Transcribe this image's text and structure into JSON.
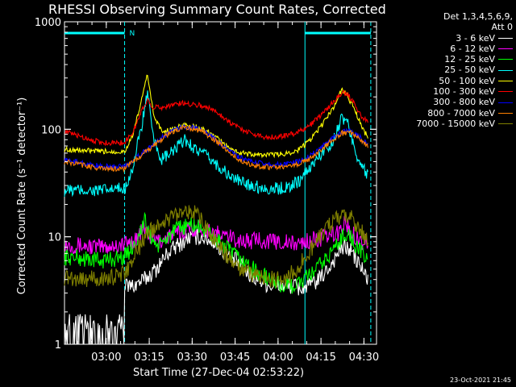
{
  "chart_data": {
    "type": "line",
    "title": "RHESSI Observing Summary Count Rates, Corrected",
    "xlabel": "Start Time (27-Dec-04 02:53:22)",
    "ylabel": "Corrected Count Rate (s⁻¹ detector⁻¹)",
    "yscale": "log",
    "ylim": [
      1,
      1000
    ],
    "xlim_minutes": [
      -8,
      101
    ],
    "yticks": [
      "1",
      "10",
      "100",
      "1000"
    ],
    "xticks": [
      {
        "t": 6.6,
        "label": "03:00"
      },
      {
        "t": 21.6,
        "label": "03:15"
      },
      {
        "t": 36.6,
        "label": "03:30"
      },
      {
        "t": 51.6,
        "label": "03:45"
      },
      {
        "t": 66.6,
        "label": "04:00"
      },
      {
        "t": 81.6,
        "label": "04:15"
      },
      {
        "t": 96.6,
        "label": "04:30"
      }
    ],
    "legend_header": [
      "Det 1,3,4,5,6,9,",
      "Att 0"
    ],
    "legend_position": "top-right",
    "night_intervals": [
      [
        -8,
        13
      ],
      [
        76,
        99
      ]
    ],
    "flag_label": "N",
    "series": [
      {
        "name": "3 - 6 keV",
        "color": "#ffffff",
        "t": [
          -8,
          5,
          12.5,
          13,
          16,
          20,
          24,
          28,
          32,
          36,
          40,
          44,
          48,
          52,
          56,
          60,
          64,
          68,
          72,
          74,
          77,
          81,
          84,
          86,
          88,
          90,
          92,
          94,
          96,
          98
        ],
        "v": [
          1.6,
          1.6,
          1.6,
          3.5,
          3.5,
          4,
          5,
          7,
          8.5,
          10,
          10,
          9,
          7,
          6,
          4.5,
          4,
          3.5,
          3.5,
          3.5,
          3.3,
          3.5,
          4,
          5,
          6,
          7.5,
          8,
          7.5,
          6,
          5,
          4
        ]
      },
      {
        "name": "6 - 12 keV",
        "color": "#ff00ff",
        "t": [
          -8,
          5,
          13,
          17,
          20,
          22,
          25,
          28,
          32,
          36,
          40,
          44,
          48,
          52,
          56,
          60,
          64,
          68,
          72,
          76,
          80,
          84,
          88,
          90,
          92,
          94,
          96,
          98
        ],
        "v": [
          8.5,
          8,
          8.5,
          9.5,
          12,
          10,
          9,
          10,
          11,
          12,
          12,
          11,
          10,
          9.5,
          9,
          9.5,
          9,
          9,
          8.5,
          9,
          9.5,
          10,
          11,
          14,
          11,
          10,
          9,
          9
        ]
      },
      {
        "name": "12 - 25 keV",
        "color": "#00ff00",
        "t": [
          -8,
          5,
          13,
          17,
          20,
          22,
          25,
          28,
          32,
          36,
          40,
          44,
          48,
          52,
          56,
          60,
          64,
          68,
          72,
          76,
          80,
          84,
          88,
          90,
          92,
          94,
          96,
          98
        ],
        "v": [
          6.5,
          6,
          6.5,
          9,
          14,
          10,
          8,
          10,
          12,
          13,
          12,
          10,
          8,
          6.5,
          5.5,
          4.5,
          4,
          3.5,
          3.5,
          4,
          5,
          6.5,
          9,
          11,
          10,
          8,
          7,
          6
        ]
      },
      {
        "name": "25 - 50 keV",
        "color": "#00ffff",
        "t": [
          -8,
          5,
          13,
          16,
          19,
          21,
          23,
          26,
          30,
          34,
          38,
          42,
          46,
          50,
          54,
          58,
          62,
          66,
          70,
          74,
          78,
          82,
          86,
          89,
          91,
          94,
          96,
          98
        ],
        "v": [
          27,
          27,
          28,
          45,
          110,
          220,
          80,
          52,
          62,
          80,
          65,
          55,
          45,
          36,
          32,
          30,
          28,
          28,
          29,
          33,
          45,
          60,
          80,
          130,
          110,
          60,
          45,
          36
        ]
      },
      {
        "name": "50 - 100 keV",
        "color": "#ffff00",
        "t": [
          -8,
          5,
          13,
          16,
          19,
          21,
          23,
          26,
          30,
          34,
          38,
          42,
          46,
          50,
          54,
          58,
          62,
          66,
          70,
          74,
          78,
          82,
          86,
          89,
          91,
          94,
          96,
          98
        ],
        "v": [
          65,
          62,
          62,
          90,
          190,
          330,
          140,
          95,
          100,
          110,
          105,
          95,
          80,
          65,
          60,
          58,
          58,
          58,
          60,
          65,
          80,
          110,
          160,
          240,
          200,
          140,
          100,
          85
        ]
      },
      {
        "name": "100 - 300 keV",
        "color": "#ff0000",
        "t": [
          -8,
          5,
          13,
          16,
          19,
          21,
          23,
          26,
          30,
          34,
          38,
          42,
          46,
          50,
          54,
          58,
          62,
          66,
          70,
          74,
          78,
          82,
          86,
          89,
          91,
          94,
          96,
          98
        ],
        "v": [
          95,
          75,
          75,
          95,
          150,
          190,
          160,
          160,
          170,
          175,
          170,
          160,
          140,
          115,
          100,
          90,
          85,
          85,
          88,
          95,
          110,
          140,
          180,
          220,
          210,
          160,
          130,
          115
        ]
      },
      {
        "name": "300 - 800 keV",
        "color": "#0000ff",
        "t": [
          -8,
          5,
          13,
          17,
          21,
          25,
          29,
          33,
          37,
          41,
          45,
          49,
          53,
          57,
          61,
          65,
          69,
          73,
          77,
          81,
          85,
          89,
          92,
          95,
          98
        ],
        "v": [
          52,
          45,
          45,
          55,
          65,
          80,
          95,
          105,
          105,
          95,
          80,
          65,
          55,
          50,
          48,
          47,
          47,
          50,
          55,
          65,
          80,
          95,
          95,
          85,
          72
        ]
      },
      {
        "name": "800 - 7000 keV",
        "color": "#ff8000",
        "t": [
          -8,
          5,
          13,
          17,
          21,
          25,
          29,
          33,
          37,
          41,
          45,
          49,
          53,
          57,
          61,
          65,
          69,
          73,
          77,
          81,
          85,
          89,
          92,
          95,
          98
        ],
        "v": [
          50,
          43,
          43,
          53,
          63,
          78,
          93,
          102,
          102,
          92,
          78,
          62,
          52,
          47,
          45,
          44,
          44,
          47,
          52,
          62,
          78,
          92,
          92,
          82,
          70
        ]
      },
      {
        "name": "7000 - 15000 keV",
        "color": "#808000",
        "t": [
          -8,
          5,
          13,
          17,
          21,
          25,
          29,
          33,
          37,
          41,
          45,
          49,
          53,
          57,
          61,
          65,
          69,
          73,
          77,
          81,
          85,
          89,
          92,
          95,
          98
        ],
        "v": [
          4.2,
          4,
          4.5,
          7,
          11,
          13,
          15,
          18,
          17,
          13,
          9,
          6.5,
          5,
          4.5,
          4.2,
          4,
          4,
          5,
          7,
          10,
          13,
          16,
          15,
          12,
          9
        ]
      }
    ]
  },
  "footer": {
    "timestamp": "23-Oct-2021 21:45"
  }
}
